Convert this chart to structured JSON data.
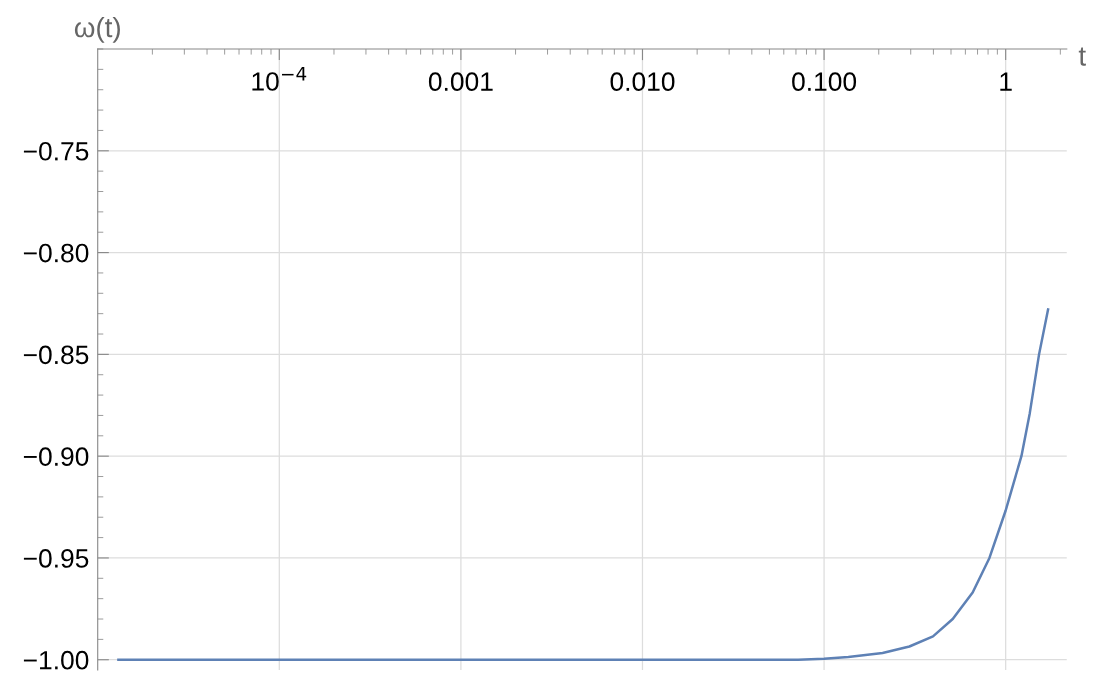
{
  "chart_data": {
    "type": "line",
    "xlabel": "t",
    "ylabel": "ω(t)",
    "log": "x",
    "x": [
      1.3e-05,
      0.001,
      0.03,
      0.072,
      0.1,
      0.136,
      0.21,
      0.295,
      0.398,
      0.511,
      0.658,
      0.814,
      1.0,
      1.221,
      1.357,
      1.527,
      1.712
    ],
    "series": [
      {
        "color": "#5e81b5",
        "values": [
          -1.0,
          -1.0,
          -1.0,
          -1.0,
          -0.9995,
          -0.9987,
          -0.9967,
          -0.9935,
          -0.9885,
          -0.98,
          -0.967,
          -0.95,
          -0.9267,
          -0.9,
          -0.879,
          -0.85,
          -0.828
        ]
      }
    ],
    "xlim": [
      1e-05,
      2.17
    ],
    "ylim": [
      -1.005,
      -0.7
    ],
    "xticks": [
      {
        "value": 0.0001,
        "label": "10$^{−4}$"
      },
      {
        "value": 0.001,
        "label": "0.001"
      },
      {
        "value": 0.01,
        "label": "0.010"
      },
      {
        "value": 0.1,
        "label": "0.100"
      },
      {
        "value": 1,
        "label": "1"
      }
    ],
    "yticks": [
      {
        "value": -1.0,
        "label": "−1.00"
      },
      {
        "value": -0.95,
        "label": "−0.95"
      },
      {
        "value": -0.9,
        "label": "−0.90"
      },
      {
        "value": -0.85,
        "label": "−0.85"
      },
      {
        "value": -0.8,
        "label": "−0.80"
      },
      {
        "value": -0.75,
        "label": "−0.75"
      }
    ],
    "grid": true,
    "line_style": "solid",
    "marker": "none",
    "legend": false
  }
}
